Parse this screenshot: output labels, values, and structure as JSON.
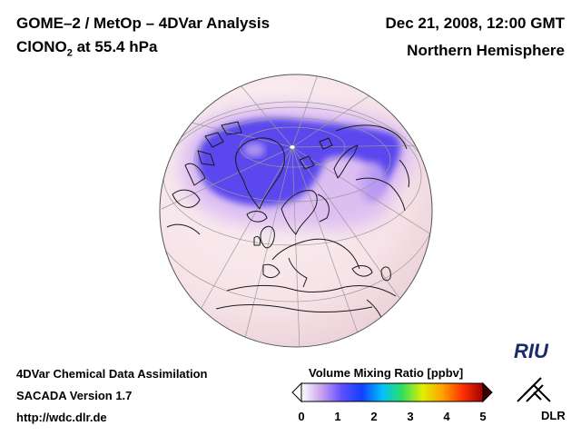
{
  "header": {
    "title_line1": "GOME–2 / MetOp – 4DVar Analysis",
    "title_line2_main": "ClONO",
    "title_line2_sub": "2",
    "title_line2_rest": " at 55.4 hPa",
    "date": "Dec 21, 2008, 12:00 GMT",
    "hemisphere": "Northern Hemisphere"
  },
  "footer": {
    "line1": "4DVar Chemical Data Assimilation",
    "line2": "SACADA Version 1.7",
    "line3": "http://wdc.dlr.de"
  },
  "colorbar": {
    "title": "Volume Mixing Ratio [ppbv]",
    "ticks": [
      "0",
      "1",
      "2",
      "3",
      "4",
      "5"
    ],
    "min": 0,
    "max": 5,
    "colors": [
      "#ffffff",
      "#c8a0f0",
      "#6050ff",
      "#1040ff",
      "#00c0ff",
      "#30e060",
      "#e0f000",
      "#ffa000",
      "#ff3000",
      "#a00000"
    ]
  },
  "logos": {
    "riu": "RIU",
    "dlr": "DLR"
  },
  "map": {
    "background_color": "#f7e6ea",
    "coast_color": "#1a1a1a",
    "low_value_color": "#5a46ee",
    "mid_value_color": "#d8b8f4",
    "grid_color": "#9a9a9a"
  }
}
